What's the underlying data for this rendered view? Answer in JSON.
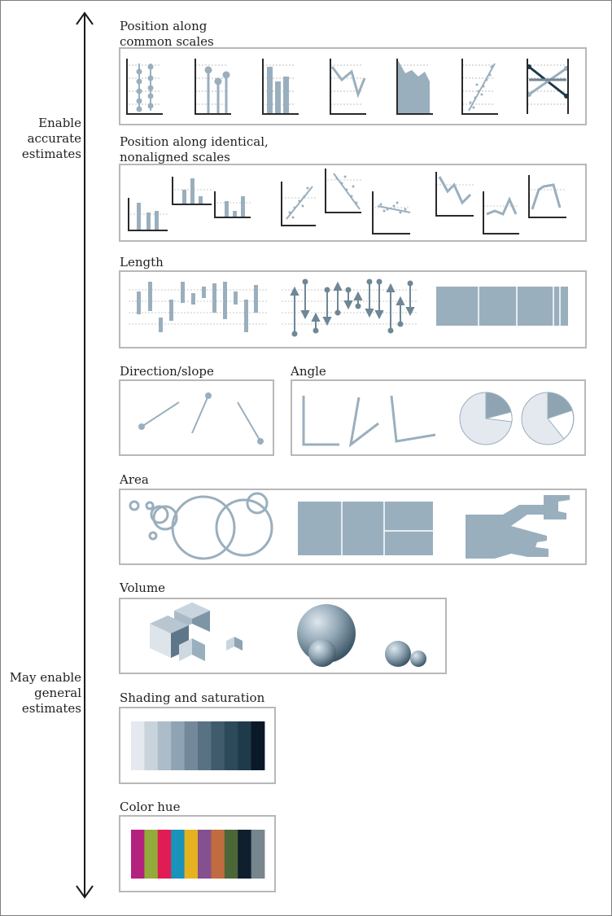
{
  "side_labels": {
    "top": [
      "Enable",
      "accurate",
      "estimates"
    ],
    "bottom": [
      "May enable",
      "general",
      "estimates"
    ]
  },
  "sections": {
    "position_common": [
      "Position along",
      "common scales"
    ],
    "position_nonaligned": [
      "Position along identical,",
      "nonaligned scales"
    ],
    "length": "Length",
    "direction": "Direction/slope",
    "angle": "Angle",
    "area": "Area",
    "volume": "Volume",
    "shading": "Shading and saturation",
    "hue": "Color hue"
  },
  "colors": {
    "accent": "#9aafbe",
    "dark": "#1d3848",
    "axis": "#333333",
    "grid": "#b5b5b5"
  },
  "shading_swatches": [
    "#e3e9ee",
    "#c9d3dc",
    "#acbcc8",
    "#8fa4b3",
    "#73899a",
    "#587283",
    "#3f5b6c",
    "#2d4a5b",
    "#1f3b4b",
    "#0a1828"
  ],
  "hue_swatches": [
    "#b2227e",
    "#93ab3a",
    "#df1d54",
    "#1a93bb",
    "#e6b220",
    "#85508f",
    "#c06b40",
    "#4c6737",
    "#0f1f2e",
    "#77858d"
  ]
}
